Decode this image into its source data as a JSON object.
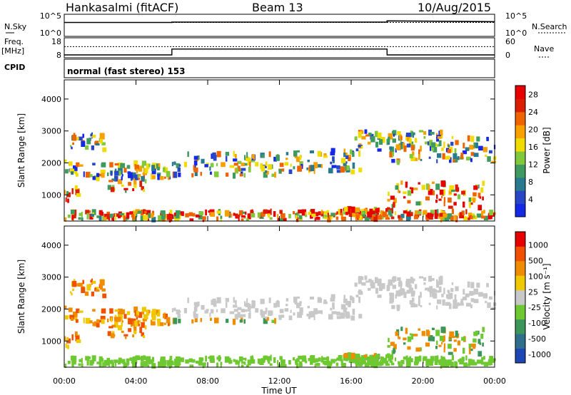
{
  "header": {
    "station": "Hankasalmi (fitACF)",
    "beam": "Beam 13",
    "date": "10/Aug/2015"
  },
  "side_labels": {
    "nsky": "N.Sky",
    "nsearch": "N.Search",
    "freq": "Freq.",
    "freq_unit": "[MHz]",
    "nave": "Nave",
    "cpid": "CPID"
  },
  "cpid_text": "normal (fast stereo) 153",
  "chart_data": [
    {
      "type": "line",
      "name": "noise",
      "left_ticks": [
        "10^5",
        "10^0"
      ],
      "right_ticks": [
        "10^5",
        "10^0"
      ],
      "series": [
        {
          "label": "N.Sky",
          "x_hours": [
            0,
            6,
            6,
            18,
            18,
            24
          ],
          "y_log10": [
            3.3,
            3.3,
            3.4,
            3.4,
            3.7,
            3.5
          ]
        },
        {
          "label": "N.Search",
          "x_hours": [
            0,
            24
          ],
          "y_log10": [
            3.3,
            3.3
          ]
        }
      ]
    },
    {
      "type": "line",
      "name": "frequency",
      "left_ticks": [
        "18",
        "8"
      ],
      "right_ticks": [
        "60",
        "0"
      ],
      "series": [
        {
          "label": "Freq.",
          "x_hours": [
            0,
            6,
            6,
            18,
            18,
            24
          ],
          "y": [
            9.2,
            9.2,
            12.5,
            12.5,
            9.2,
            9.2
          ]
        },
        {
          "label": "Nave",
          "x_hours": [
            0,
            24
          ],
          "y_nave": [
            35,
            35
          ]
        }
      ]
    },
    {
      "type": "heatmap",
      "name": "power",
      "ylabel": "Slant Range [km]",
      "yticks": [
        1000,
        2000,
        3000,
        4000
      ],
      "ylim": [
        180,
        4600
      ],
      "xlim_hours": [
        0,
        24
      ],
      "colorbar_label": "Power [dB]",
      "colorbar_ticks": [
        4,
        8,
        12,
        16,
        20,
        24,
        28
      ],
      "colorbar_colors": [
        "#1428e6",
        "#2746c8",
        "#2a7a8f",
        "#3f9a5f",
        "#82c83c",
        "#f0dc00",
        "#f8a000",
        "#f06400",
        "#dc1e00",
        "#e60000"
      ]
    },
    {
      "type": "heatmap",
      "name": "velocity",
      "ylabel": "Slant Range [km]",
      "yticks": [
        1000,
        2000,
        3000,
        4000
      ],
      "ylim": [
        180,
        4600
      ],
      "xlim_hours": [
        0,
        24
      ],
      "xticks": [
        "00:00",
        "04:00",
        "08:00",
        "12:00",
        "16:00",
        "20:00",
        "00:00"
      ],
      "xlabel": "Time UT",
      "colorbar_label": "Velocity [m s⁻¹]",
      "colorbar_ticks": [
        "1000",
        "500",
        "100",
        "25",
        "-25",
        "-100",
        "-500",
        "-1000"
      ],
      "colorbar_colors": [
        "#1e46b4",
        "#2f6e8c",
        "#3c965a",
        "#6ec832",
        "#c8c8c8",
        "#f0c800",
        "#f08c00",
        "#f05000",
        "#e60000"
      ]
    }
  ],
  "echo_regions": [
    {
      "x": [
        0.0,
        0.7
      ],
      "y": [
        1600,
        2100
      ]
    },
    {
      "x": [
        0.3,
        2.2
      ],
      "y": [
        2400,
        2900
      ]
    },
    {
      "x": [
        0.8,
        5.8
      ],
      "y": [
        1500,
        2000
      ]
    },
    {
      "x": [
        2.4,
        4.5
      ],
      "y": [
        1100,
        1700
      ]
    },
    {
      "x": [
        0.0,
        0.8
      ],
      "y": [
        800,
        1300
      ]
    },
    {
      "x": [
        6.0,
        12.0
      ],
      "y": [
        1600,
        2300
      ]
    },
    {
      "x": [
        12.0,
        16.5
      ],
      "y": [
        1700,
        2400
      ]
    },
    {
      "x": [
        16.0,
        21.0
      ],
      "y": [
        2400,
        3000
      ]
    },
    {
      "x": [
        18.0,
        24.0
      ],
      "y": [
        2000,
        2800
      ]
    },
    {
      "x": [
        18.0,
        23.5
      ],
      "y": [
        600,
        1400
      ]
    },
    {
      "x": [
        0.0,
        24.0
      ],
      "y": [
        220,
        480
      ]
    },
    {
      "x": [
        15.3,
        18.2
      ],
      "y": [
        380,
        560
      ]
    }
  ]
}
